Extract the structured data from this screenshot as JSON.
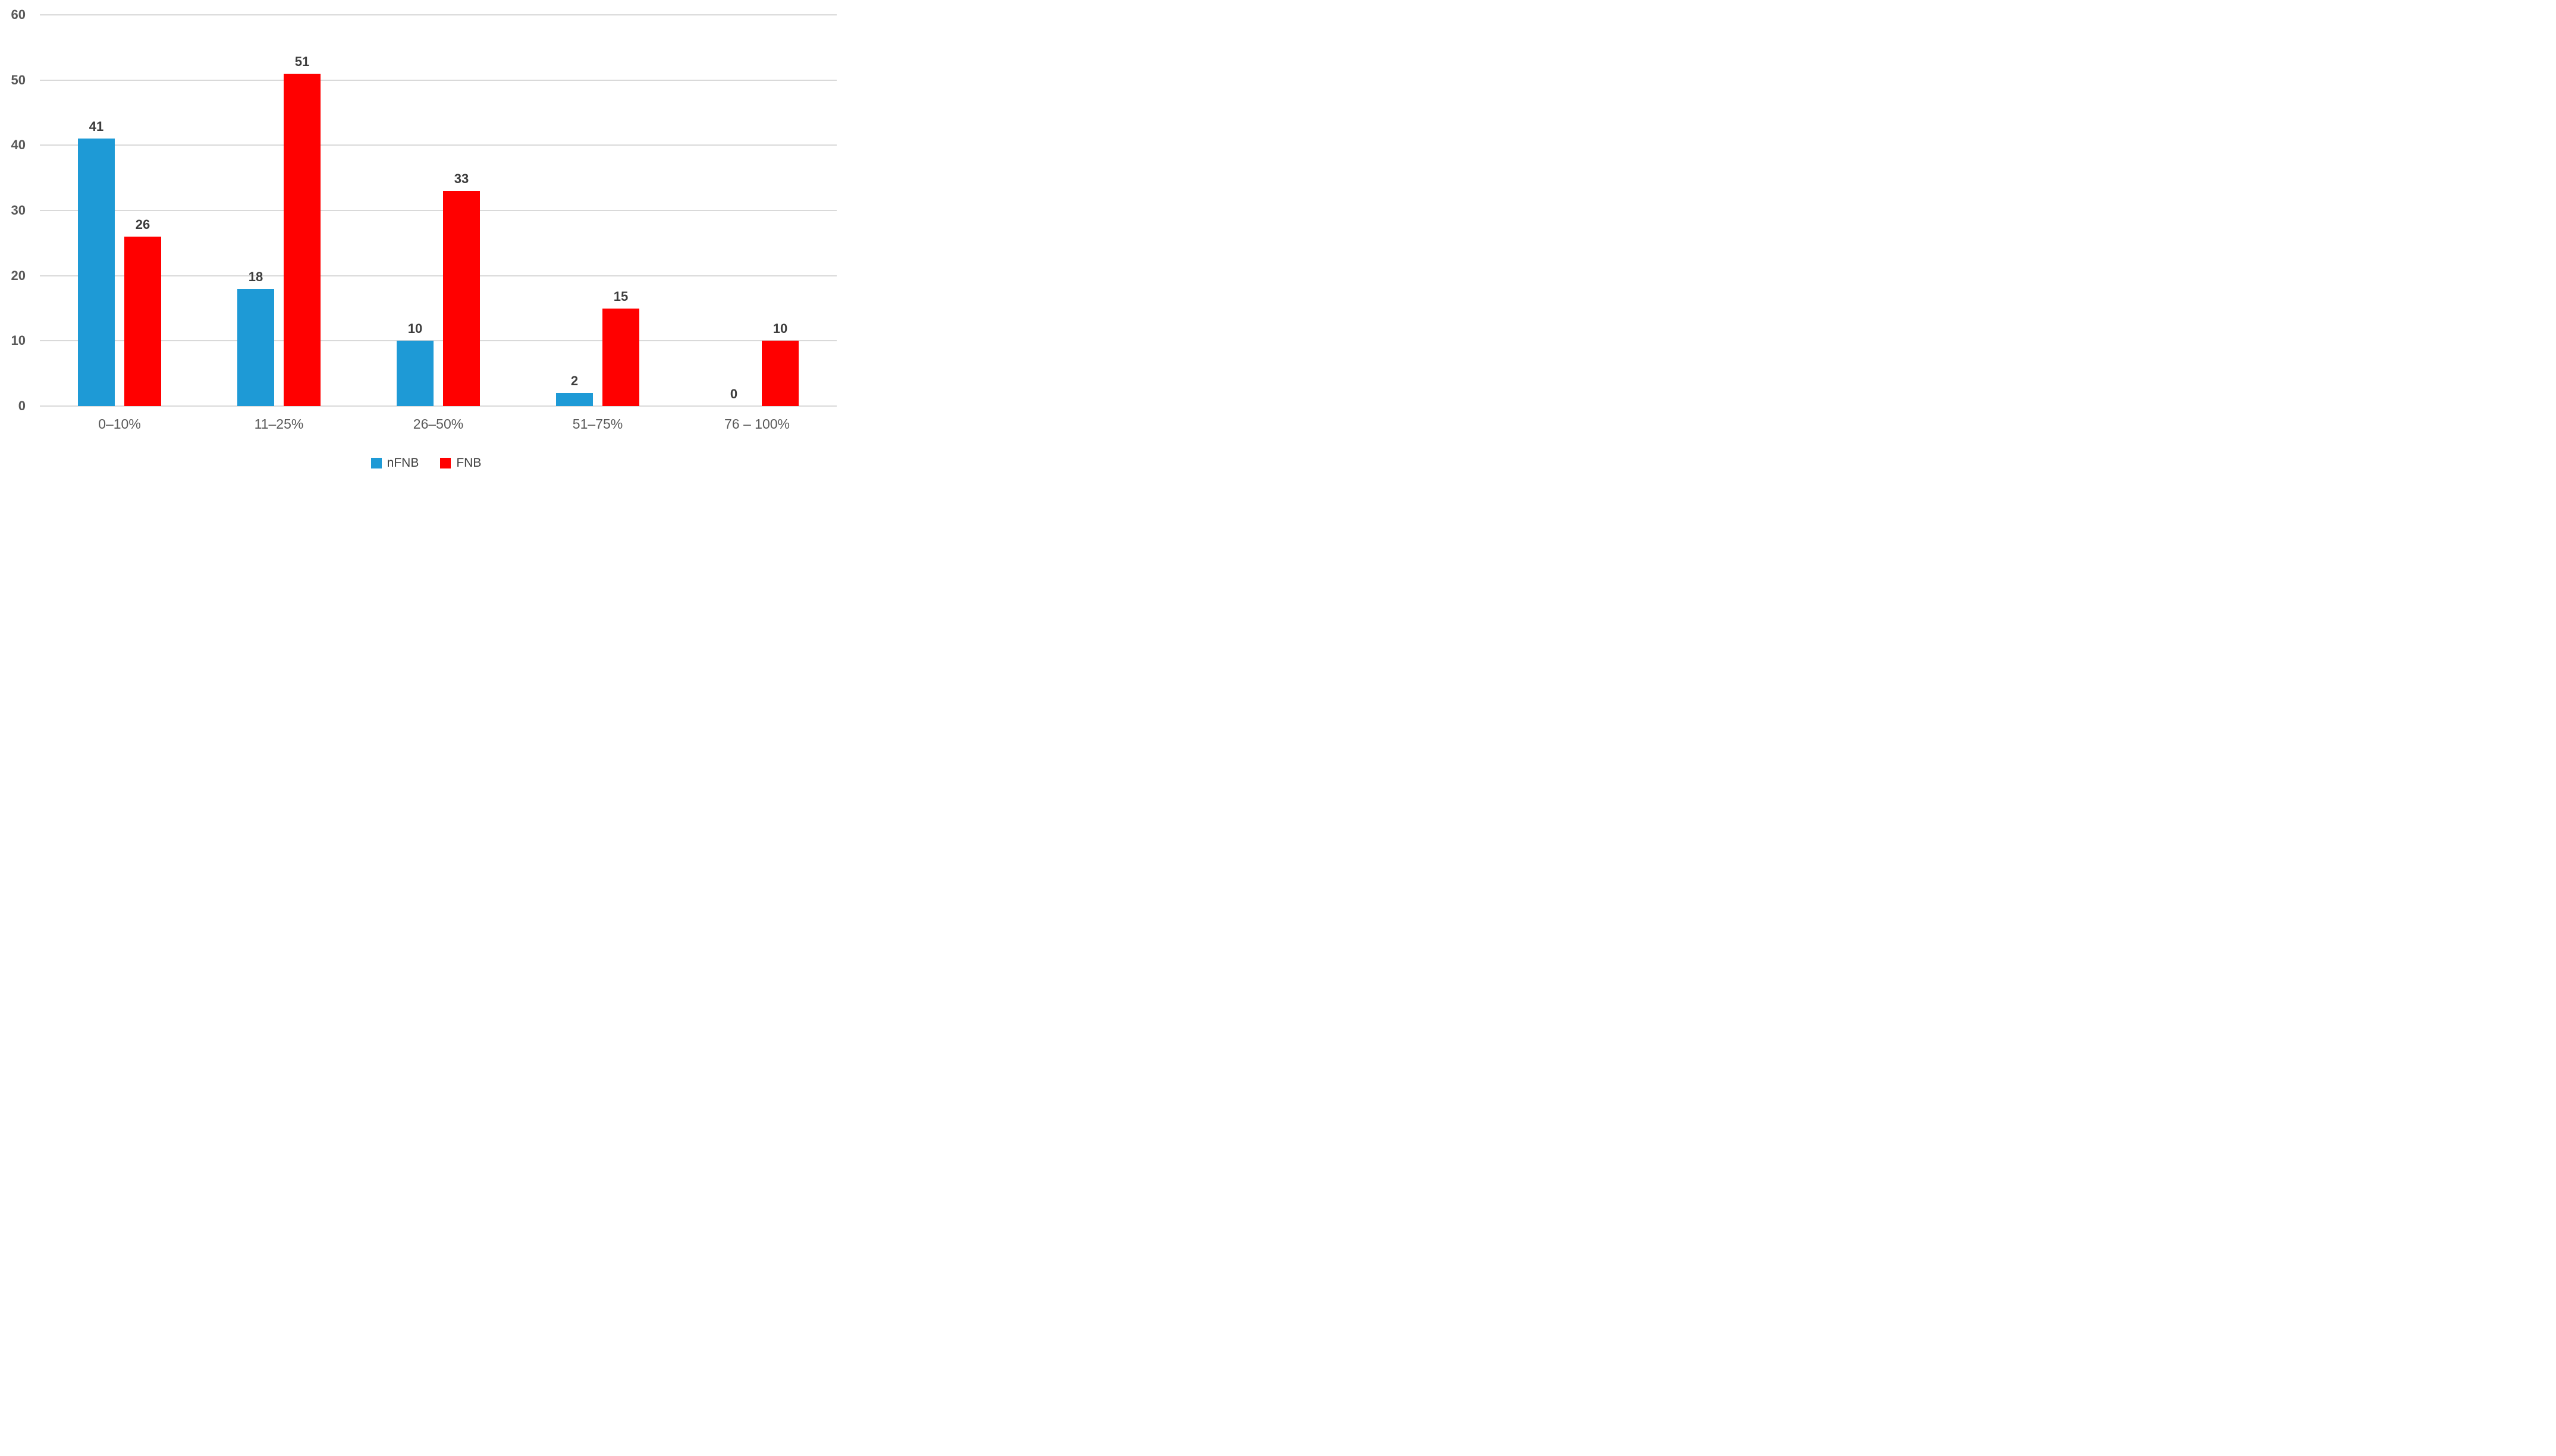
{
  "chart_data": {
    "type": "bar",
    "title": "",
    "xlabel": "",
    "ylabel": "",
    "categories": [
      "0–10%",
      "11–25%",
      "26–50%",
      "51–75%",
      "76 – 100%"
    ],
    "series": [
      {
        "name": "nFNB",
        "color": "#1E9AD6",
        "values": [
          41,
          18,
          10,
          2,
          0
        ]
      },
      {
        "name": "FNB",
        "color": "#FF0000",
        "values": [
          26,
          51,
          33,
          15,
          10
        ]
      }
    ],
    "ylim": [
      0,
      60
    ],
    "y_ticks": [
      0,
      10,
      20,
      30,
      40,
      50,
      60
    ],
    "grid": "horizontal",
    "legend_position": "bottom",
    "value_labels": "outside-end"
  },
  "colors": {
    "background": "#FFFFFF",
    "grid_line": "#D9D9D9",
    "tick_label": "#595959",
    "value_label": "#3D3D3D",
    "legend_label": "#404040"
  }
}
